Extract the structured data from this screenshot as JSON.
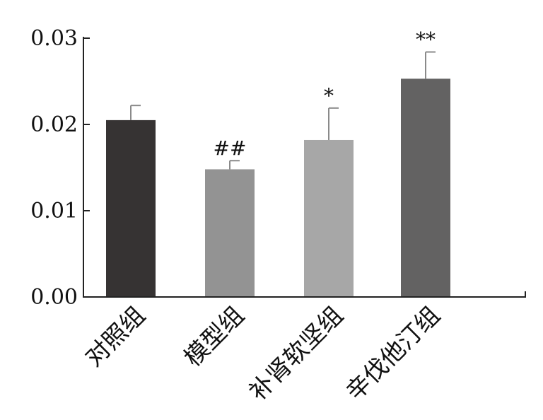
{
  "chart_data": {
    "type": "bar",
    "title": "",
    "xlabel": "",
    "ylabel": "",
    "ylim": [
      0,
      0.03
    ],
    "yticks": [
      "0.00",
      "0.01",
      "0.02",
      "0.03"
    ],
    "grid": false,
    "legend": "none",
    "categories": [
      "对照组",
      "模型组",
      "补肾软坚组",
      "辛伐他汀组"
    ],
    "values": [
      0.0205,
      0.0148,
      0.0182,
      0.0253
    ],
    "errors": [
      0.0017,
      0.001,
      0.0037,
      0.0031
    ],
    "significance": [
      "",
      "##",
      "*",
      "**"
    ],
    "colors": [
      "#363333",
      "#939393",
      "#a7a7a7",
      "#636262"
    ]
  }
}
